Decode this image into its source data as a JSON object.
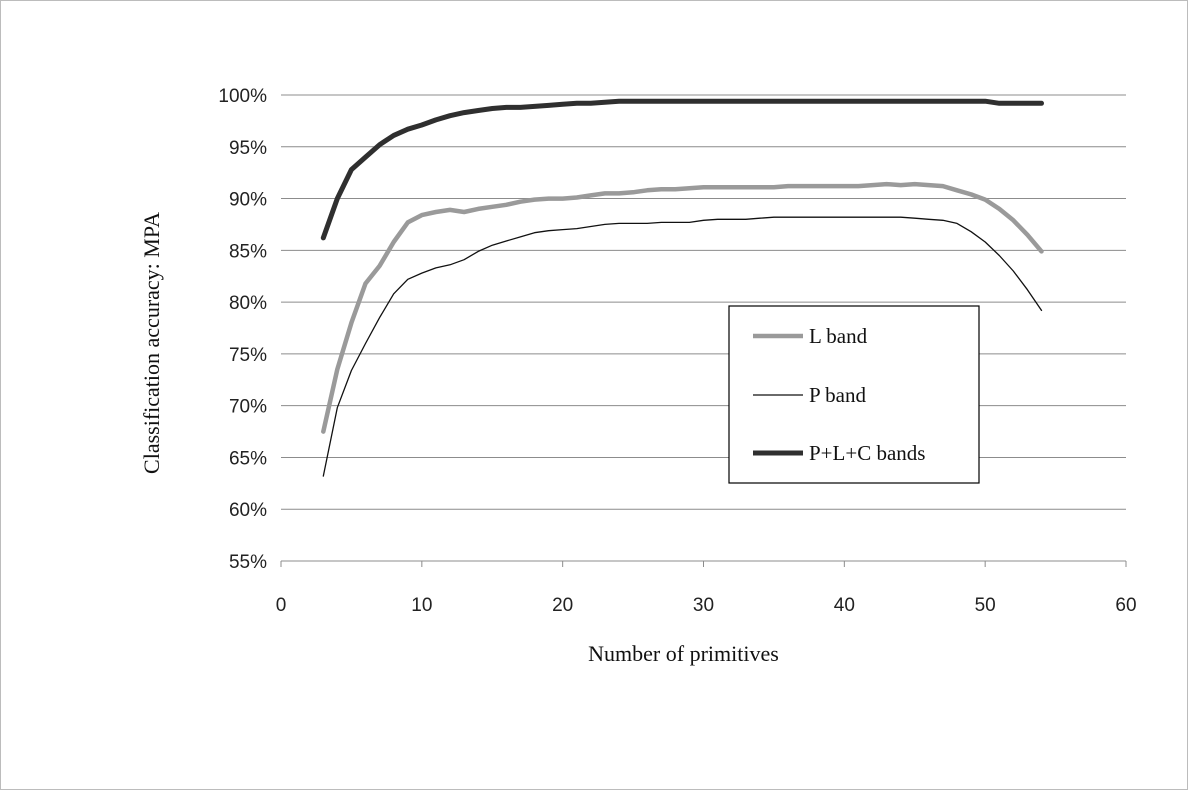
{
  "chart_data": {
    "type": "line",
    "xlabel": "Number of primitives",
    "ylabel": "Classification accuracy: MPA",
    "xlim": [
      0,
      60
    ],
    "ylim": [
      55,
      100
    ],
    "x_ticks": [
      "0",
      "10",
      "20",
      "30",
      "40",
      "50",
      "60"
    ],
    "y_ticks": [
      "55%",
      "60%",
      "65%",
      "70%",
      "75%",
      "80%",
      "85%",
      "90%",
      "95%",
      "100%"
    ],
    "grid": "horizontal",
    "legend_position": "right",
    "series": [
      {
        "name": "L band",
        "color": "#9a9a9a",
        "style": "thick",
        "x": [
          3,
          4,
          5,
          6,
          7,
          8,
          9,
          10,
          11,
          12,
          13,
          14,
          15,
          16,
          17,
          18,
          19,
          20,
          21,
          22,
          23,
          24,
          25,
          26,
          27,
          28,
          29,
          30,
          31,
          32,
          33,
          34,
          35,
          36,
          37,
          38,
          39,
          40,
          41,
          42,
          43,
          44,
          45,
          46,
          47,
          48,
          49,
          50,
          51,
          52,
          53,
          54
        ],
        "y": [
          67.5,
          73.5,
          78,
          81.8,
          83.5,
          85.8,
          87.7,
          88.4,
          88.7,
          88.9,
          88.7,
          89.0,
          89.2,
          89.4,
          89.7,
          89.9,
          90.0,
          90.0,
          90.1,
          90.3,
          90.5,
          90.5,
          90.6,
          90.8,
          90.9,
          90.9,
          91.0,
          91.1,
          91.1,
          91.1,
          91.1,
          91.1,
          91.1,
          91.2,
          91.2,
          91.2,
          91.2,
          91.2,
          91.2,
          91.3,
          91.4,
          91.3,
          91.4,
          91.3,
          91.2,
          90.8,
          90.4,
          89.9,
          89.0,
          87.9,
          86.5,
          84.9
        ]
      },
      {
        "name": "P band",
        "color": "#111111",
        "style": "thin",
        "x": [
          3,
          4,
          5,
          6,
          7,
          8,
          9,
          10,
          11,
          12,
          13,
          14,
          15,
          16,
          17,
          18,
          19,
          20,
          21,
          22,
          23,
          24,
          25,
          26,
          27,
          28,
          29,
          30,
          31,
          32,
          33,
          34,
          35,
          36,
          37,
          38,
          39,
          40,
          41,
          42,
          43,
          44,
          45,
          46,
          47,
          48,
          49,
          50,
          51,
          52,
          53,
          54
        ],
        "y": [
          63.2,
          69.8,
          73.4,
          76.0,
          78.5,
          80.8,
          82.2,
          82.8,
          83.3,
          83.6,
          84.1,
          84.9,
          85.5,
          85.9,
          86.3,
          86.7,
          86.9,
          87.0,
          87.1,
          87.3,
          87.5,
          87.6,
          87.6,
          87.6,
          87.7,
          87.7,
          87.7,
          87.9,
          88.0,
          88.0,
          88.0,
          88.1,
          88.2,
          88.2,
          88.2,
          88.2,
          88.2,
          88.2,
          88.2,
          88.2,
          88.2,
          88.2,
          88.1,
          88.0,
          87.9,
          87.6,
          86.8,
          85.8,
          84.5,
          83.0,
          81.2,
          79.2
        ]
      },
      {
        "name": "P+L+C bands",
        "color": "#2f2f2f",
        "style": "thickest",
        "x": [
          3,
          4,
          5,
          6,
          7,
          8,
          9,
          10,
          11,
          12,
          13,
          14,
          15,
          16,
          17,
          18,
          19,
          20,
          21,
          22,
          23,
          24,
          25,
          26,
          27,
          28,
          29,
          30,
          31,
          32,
          33,
          34,
          35,
          36,
          37,
          38,
          39,
          40,
          41,
          42,
          43,
          44,
          45,
          46,
          47,
          48,
          49,
          50,
          51,
          52,
          53,
          54
        ],
        "y": [
          86.2,
          90.0,
          92.8,
          94.0,
          95.2,
          96.1,
          96.7,
          97.1,
          97.6,
          98.0,
          98.3,
          98.5,
          98.7,
          98.8,
          98.8,
          98.9,
          99.0,
          99.1,
          99.2,
          99.2,
          99.3,
          99.4,
          99.4,
          99.4,
          99.4,
          99.4,
          99.4,
          99.4,
          99.4,
          99.4,
          99.4,
          99.4,
          99.4,
          99.4,
          99.4,
          99.4,
          99.4,
          99.4,
          99.4,
          99.4,
          99.4,
          99.4,
          99.4,
          99.4,
          99.4,
          99.4,
          99.4,
          99.4,
          99.2,
          99.2,
          99.2,
          99.2
        ]
      }
    ]
  }
}
